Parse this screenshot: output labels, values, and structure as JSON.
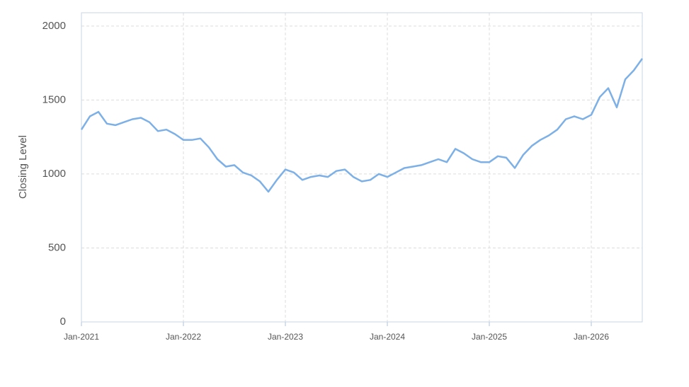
{
  "chart_data": {
    "type": "line",
    "y_label": "Closing Level",
    "x": [
      "2021-01",
      "2021-02",
      "2021-03",
      "2021-04",
      "2021-05",
      "2021-06",
      "2021-07",
      "2021-08",
      "2021-09",
      "2021-10",
      "2021-11",
      "2021-12",
      "2022-01",
      "2022-02",
      "2022-03",
      "2022-04",
      "2022-05",
      "2022-06",
      "2022-07",
      "2022-08",
      "2022-09",
      "2022-10",
      "2022-11",
      "2022-12",
      "2023-01",
      "2023-02",
      "2023-03",
      "2023-04",
      "2023-05",
      "2023-06",
      "2023-07",
      "2023-08",
      "2023-09",
      "2023-10",
      "2023-11",
      "2023-12",
      "2024-01",
      "2024-02",
      "2024-03",
      "2024-04",
      "2024-05",
      "2024-06",
      "2024-07",
      "2024-08",
      "2024-09",
      "2024-10",
      "2024-11",
      "2024-12",
      "2025-01",
      "2025-02",
      "2025-03",
      "2025-04",
      "2025-05",
      "2025-06",
      "2025-07",
      "2025-08",
      "2025-09",
      "2025-10",
      "2025-11",
      "2025-12",
      "2026-01",
      "2026-02",
      "2026-03",
      "2026-04",
      "2026-05",
      "2026-06",
      "2026-07"
    ],
    "series": [
      {
        "color": "#7cb0e6",
        "values": [
          1300,
          1390,
          1420,
          1340,
          1330,
          1350,
          1370,
          1380,
          1350,
          1290,
          1300,
          1270,
          1230,
          1230,
          1240,
          1180,
          1100,
          1050,
          1060,
          1010,
          990,
          950,
          880,
          960,
          1030,
          1010,
          960,
          980,
          990,
          980,
          1020,
          1030,
          980,
          950,
          960,
          1000,
          980,
          1010,
          1040,
          1050,
          1060,
          1080,
          1100,
          1080,
          1170,
          1140,
          1100,
          1080,
          1080,
          1120,
          1110,
          1040,
          1130,
          1190,
          1230,
          1260,
          1300,
          1370,
          1390,
          1370,
          1400,
          1520,
          1580,
          1450,
          1640,
          1700,
          1780
        ]
      }
    ],
    "xlim": [
      "2021-01",
      "2026-07"
    ],
    "xticks": [
      {
        "value": "2021-01",
        "label": "Jan-2021"
      },
      {
        "value": "2022-01",
        "label": "Jan-2022"
      },
      {
        "value": "2023-01",
        "label": "Jan-2023"
      },
      {
        "value": "2024-01",
        "label": "Jan-2024"
      },
      {
        "value": "2025-01",
        "label": "Jan-2025"
      },
      {
        "value": "2026-01",
        "label": "Jan-2026"
      }
    ],
    "ylim": [
      0,
      2090
    ],
    "yticks": [
      0,
      500,
      1000,
      1500,
      2000
    ],
    "grid": true
  }
}
